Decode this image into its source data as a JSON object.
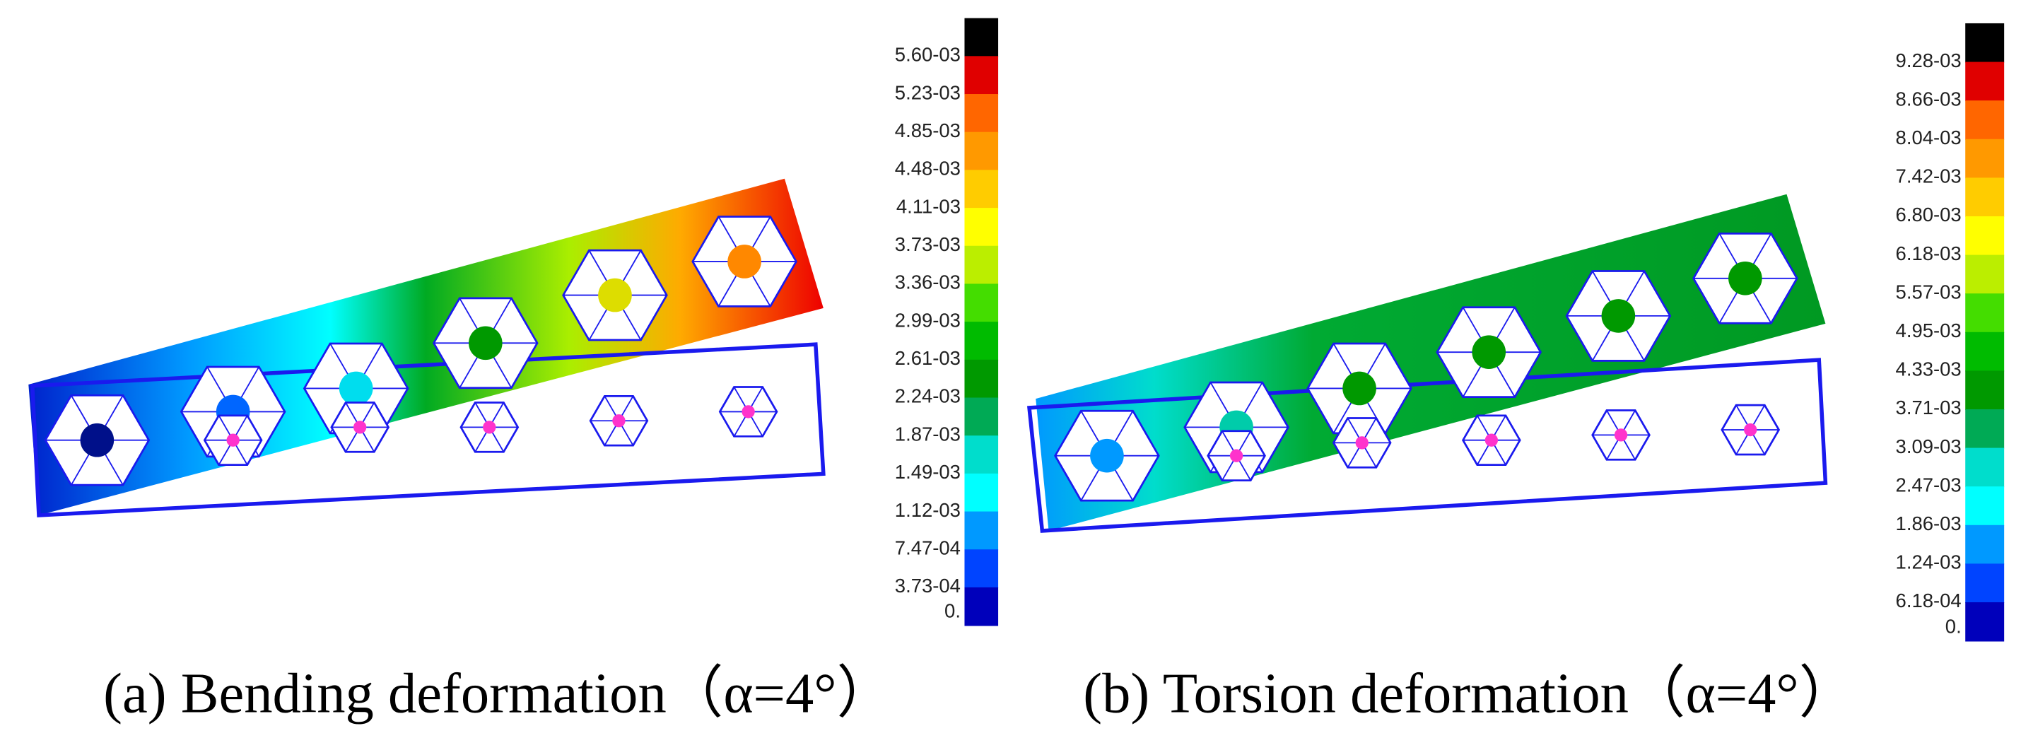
{
  "panels": [
    {
      "caption": "(a) Bending deformation（α=4°）",
      "legend": {
        "labels": [
          "5.60-03",
          "5.23-03",
          "4.85-03",
          "4.48-03",
          "4.11-03",
          "3.73-03",
          "3.36-03",
          "2.99-03",
          "2.61-03",
          "2.24-03",
          "1.87-03",
          "1.49-03",
          "1.12-03",
          "7.47-04",
          "3.73-04",
          "0."
        ],
        "colors": [
          "#000000",
          "#e00000",
          "#ff6600",
          "#ff9900",
          "#ffcc00",
          "#ffff00",
          "#bbee00",
          "#44dd00",
          "#00bb00",
          "#009900",
          "#00aa55",
          "#00ddcc",
          "#00ffff",
          "#0099ff",
          "#0044ff",
          "#0000bb"
        ]
      }
    },
    {
      "caption": "(b) Torsion deformation（α=4°）",
      "legend": {
        "labels": [
          "9.28-03",
          "8.66-03",
          "8.04-03",
          "7.42-03",
          "6.80-03",
          "6.18-03",
          "5.57-03",
          "4.95-03",
          "4.33-03",
          "3.71-03",
          "3.09-03",
          "2.47-03",
          "1.86-03",
          "1.24-03",
          "6.18-04",
          "0."
        ],
        "colors": [
          "#000000",
          "#e00000",
          "#ff6600",
          "#ff9900",
          "#ffcc00",
          "#ffff00",
          "#bbee00",
          "#44dd00",
          "#00bb00",
          "#009900",
          "#00aa55",
          "#00ddcc",
          "#00ffff",
          "#0099ff",
          "#0044ff",
          "#0000bb"
        ]
      }
    }
  ]
}
